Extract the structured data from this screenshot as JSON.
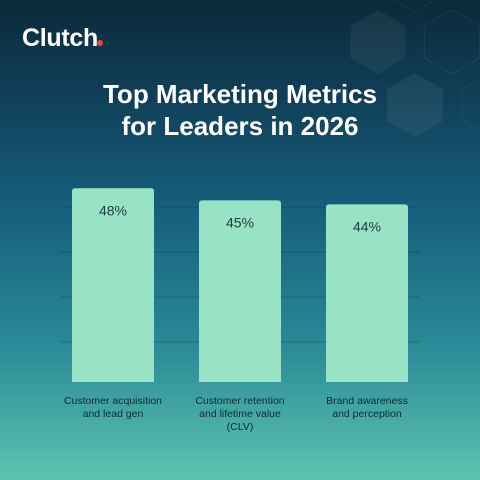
{
  "brand": {
    "name": "Clutch",
    "text": "Clutch",
    "dot_color": "#ef4335"
  },
  "title": {
    "line1": "Top Marketing Metrics",
    "line2": "for Leaders in 2026"
  },
  "chart_data": {
    "type": "bar",
    "categories": [
      [
        "Customer acquisition",
        "and lead gen"
      ],
      [
        "Customer retention",
        "and lifetime value",
        "(CLV)"
      ],
      [
        "Brand awareness",
        "and perception"
      ]
    ],
    "values": [
      48,
      45,
      44
    ],
    "value_labels": [
      "48%",
      "45%",
      "44%"
    ],
    "unit": "%",
    "bar_color": "#98e2c6",
    "gridlines": true,
    "title": "Top Marketing Metrics for Leaders in 2026",
    "xlabel": "",
    "ylabel": ""
  }
}
